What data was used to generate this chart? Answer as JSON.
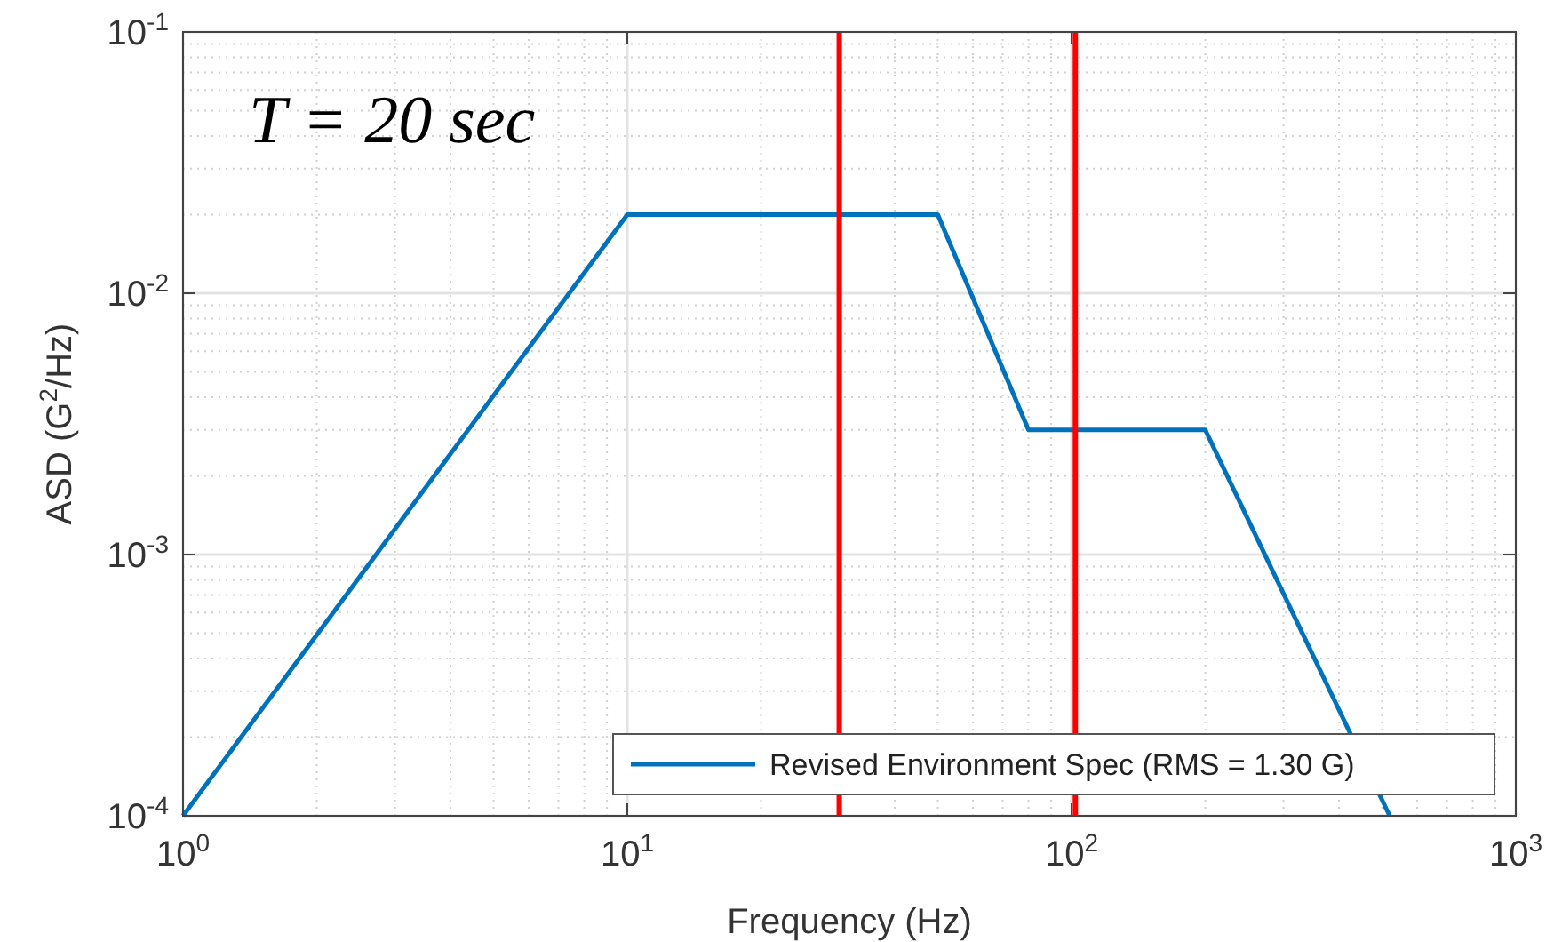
{
  "chart_data": {
    "type": "line",
    "xlabel": "Frequency (Hz)",
    "ylabel": "ASD (G$^{2}$/Hz)",
    "log": "xy",
    "grid": true,
    "legend": "bottom right",
    "xlim": [
      1,
      1000
    ],
    "ylim": [
      0.0001,
      0.1
    ],
    "xticks": [
      {
        "value": 1,
        "label": "10$^{0}$"
      },
      {
        "value": 10,
        "label": "10$^{1}$"
      },
      {
        "value": 100,
        "label": "10$^{2}$"
      },
      {
        "value": 1000,
        "label": "10$^{3}$"
      }
    ],
    "yticks": [
      {
        "value": 0.0001,
        "label": "10$^{-4}$"
      },
      {
        "value": 0.001,
        "label": "10$^{-3}$"
      },
      {
        "value": 0.01,
        "label": "10$^{-2}$"
      },
      {
        "value": 0.1,
        "label": "10$^{-1}$"
      }
    ],
    "x": [
      1,
      10,
      50,
      80,
      200,
      520
    ],
    "series": [
      {
        "name": "Revised Environment Spec (RMS = 1.30 G)",
        "color": "#0072bd",
        "values": [
          0.0001,
          0.02,
          0.02,
          0.003,
          0.003,
          0.0001
        ]
      }
    ],
    "ref_lines": [
      {
        "axis": "x",
        "value": 30,
        "color": "#ff0000"
      },
      {
        "axis": "x",
        "value": 102,
        "color": "#ff0000"
      }
    ],
    "annotations": [
      "T = 20 sec"
    ]
  }
}
